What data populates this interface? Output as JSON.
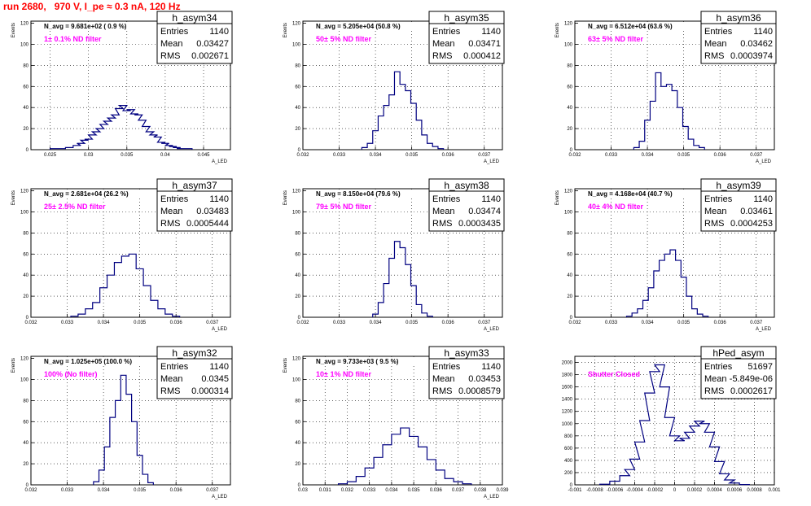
{
  "run_title": "run 2680,   970 V, I_pe ≈ 0.3 nA, 120 Hz",
  "chart_data": [
    {
      "type": "histogram",
      "name": "h_asym34",
      "entries": "1140",
      "mean": "0.03427",
      "rms": "0.002671",
      "annotation": "N_avg = 9.681e+02 ( 0.9 %)",
      "filter_label": "1± 0.1% ND filter",
      "xlabel": "A_LED",
      "ylabel": "Events",
      "xlim": [
        0.0225,
        0.0485
      ],
      "ylim": [
        0,
        122
      ],
      "xticks": [
        "0.025",
        "0.03",
        "0.035",
        "0.04",
        "0.045"
      ],
      "xtick_values": [
        0.025,
        0.03,
        0.035,
        0.04,
        0.045
      ],
      "yticks": [
        "0",
        "20",
        "40",
        "60",
        "80",
        "100",
        "120"
      ],
      "ytick_values": [
        0,
        20,
        40,
        60,
        80,
        100,
        120
      ],
      "x": [
        0.0255,
        0.0265,
        0.0275,
        0.0285,
        0.029,
        0.0295,
        0.03,
        0.0305,
        0.031,
        0.0315,
        0.032,
        0.0325,
        0.033,
        0.0335,
        0.034,
        0.0345,
        0.035,
        0.0355,
        0.036,
        0.0365,
        0.037,
        0.0375,
        0.038,
        0.0385,
        0.039,
        0.0395,
        0.04,
        0.0405,
        0.041,
        0.0415,
        0.042,
        0.043
      ],
      "y": [
        1,
        1,
        2,
        4,
        6,
        9,
        10,
        14,
        17,
        20,
        24,
        27,
        30,
        33,
        39,
        42,
        37,
        38,
        34,
        33,
        28,
        22,
        17,
        14,
        12,
        7,
        6,
        4,
        3,
        2,
        1,
        1
      ]
    },
    {
      "type": "histogram",
      "name": "h_asym35",
      "entries": "1140",
      "mean": "0.03471",
      "rms": "0.000412",
      "annotation": "N_avg = 5.205e+04 (50.8 %)",
      "filter_label": "50± 5% ND filter",
      "xlabel": "A_LED",
      "ylabel": "Events",
      "xlim": [
        0.032,
        0.0375
      ],
      "ylim": [
        0,
        122
      ],
      "xticks": [
        "0.032",
        "0.033",
        "0.034",
        "0.035",
        "0.036",
        "0.037"
      ],
      "xtick_values": [
        0.032,
        0.033,
        0.034,
        0.035,
        0.036,
        0.037
      ],
      "yticks": [
        "0",
        "20",
        "40",
        "60",
        "80",
        "100",
        "120"
      ],
      "ytick_values": [
        0,
        20,
        40,
        60,
        80,
        100,
        120
      ],
      "x": [
        0.0337,
        0.03385,
        0.034,
        0.03415,
        0.0343,
        0.03445,
        0.0346,
        0.03475,
        0.0349,
        0.03505,
        0.0352,
        0.03535,
        0.0355,
        0.03565,
        0.0358
      ],
      "y": [
        2,
        6,
        18,
        32,
        42,
        52,
        74,
        62,
        56,
        44,
        28,
        14,
        6,
        3,
        1
      ]
    },
    {
      "type": "histogram",
      "name": "h_asym36",
      "entries": "1140",
      "mean": "0.03462",
      "rms": "0.0003974",
      "annotation": "N_avg = 6.512e+04 (63.6 %)",
      "filter_label": "63± 5% ND filter",
      "xlabel": "A_LED",
      "ylabel": "Events",
      "xlim": [
        0.032,
        0.0375
      ],
      "ylim": [
        0,
        122
      ],
      "xticks": [
        "0.032",
        "0.033",
        "0.034",
        "0.035",
        "0.036",
        "0.037"
      ],
      "xtick_values": [
        0.032,
        0.033,
        0.034,
        0.035,
        0.036,
        0.037
      ],
      "yticks": [
        "0",
        "20",
        "40",
        "60",
        "80",
        "100",
        "120"
      ],
      "ytick_values": [
        0,
        20,
        40,
        60,
        80,
        100,
        120
      ],
      "x": [
        0.0337,
        0.03385,
        0.034,
        0.03415,
        0.0343,
        0.03445,
        0.0346,
        0.03475,
        0.0349,
        0.03505,
        0.0352,
        0.03535,
        0.0355
      ],
      "y": [
        2,
        8,
        28,
        46,
        73,
        60,
        62,
        56,
        40,
        22,
        10,
        4,
        2
      ]
    },
    {
      "type": "histogram",
      "name": "h_asym37",
      "entries": "1140",
      "mean": "0.03483",
      "rms": "0.0005444",
      "annotation": "N_avg = 2.681e+04 (26.2 %)",
      "filter_label": "25± 2.5% ND filter",
      "xlabel": "A_LED",
      "ylabel": "Events",
      "xlim": [
        0.032,
        0.0375
      ],
      "ylim": [
        0,
        122
      ],
      "xticks": [
        "0.032",
        "0.033",
        "0.034",
        "0.035",
        "0.036",
        "0.037"
      ],
      "xtick_values": [
        0.032,
        0.033,
        0.034,
        0.035,
        0.036,
        0.037
      ],
      "yticks": [
        "0",
        "20",
        "40",
        "60",
        "80",
        "100",
        "120"
      ],
      "ytick_values": [
        0,
        20,
        40,
        60,
        80,
        100,
        120
      ],
      "x": [
        0.0332,
        0.0334,
        0.0336,
        0.0338,
        0.034,
        0.0342,
        0.0344,
        0.0346,
        0.0348,
        0.035,
        0.0352,
        0.0354,
        0.0356,
        0.0358,
        0.036
      ],
      "y": [
        1,
        3,
        8,
        14,
        28,
        40,
        52,
        58,
        60,
        46,
        30,
        16,
        8,
        3,
        1
      ]
    },
    {
      "type": "histogram",
      "name": "h_asym38",
      "entries": "1140",
      "mean": "0.03474",
      "rms": "0.0003435",
      "annotation": "N_avg = 8.150e+04 (79.6 %)",
      "filter_label": "79± 5% ND filter",
      "xlabel": "A_LED",
      "ylabel": "Events",
      "xlim": [
        0.032,
        0.0375
      ],
      "ylim": [
        0,
        122
      ],
      "xticks": [
        "0.032",
        "0.033",
        "0.034",
        "0.035",
        "0.036",
        "0.037"
      ],
      "xtick_values": [
        0.032,
        0.033,
        0.034,
        0.035,
        0.036,
        0.037
      ],
      "yticks": [
        "0",
        "20",
        "40",
        "60",
        "80",
        "100",
        "120"
      ],
      "ytick_values": [
        0,
        20,
        40,
        60,
        80,
        100,
        120
      ],
      "x": [
        0.034,
        0.03415,
        0.0343,
        0.03445,
        0.0346,
        0.03475,
        0.0349,
        0.03505,
        0.0352,
        0.03535,
        0.0355
      ],
      "y": [
        3,
        14,
        32,
        56,
        72,
        66,
        50,
        30,
        12,
        4,
        1
      ]
    },
    {
      "type": "histogram",
      "name": "h_asym39",
      "entries": "1140",
      "mean": "0.03461",
      "rms": "0.0004253",
      "annotation": "N_avg = 4.168e+04 (40.7 %)",
      "filter_label": "40± 4% ND filter",
      "xlabel": "A_LED",
      "ylabel": "Events",
      "xlim": [
        0.032,
        0.0375
      ],
      "ylim": [
        0,
        122
      ],
      "xticks": [
        "0.032",
        "0.033",
        "0.034",
        "0.035",
        "0.036",
        "0.037"
      ],
      "xtick_values": [
        0.032,
        0.033,
        0.034,
        0.035,
        0.036,
        0.037
      ],
      "yticks": [
        "0",
        "20",
        "40",
        "60",
        "80",
        "100",
        "120"
      ],
      "ytick_values": [
        0,
        20,
        40,
        60,
        80,
        100,
        120
      ],
      "x": [
        0.0335,
        0.03365,
        0.0338,
        0.03395,
        0.0341,
        0.03425,
        0.0344,
        0.03455,
        0.0347,
        0.03485,
        0.035,
        0.03515,
        0.0353,
        0.03545,
        0.0356
      ],
      "y": [
        1,
        4,
        8,
        16,
        28,
        44,
        54,
        60,
        64,
        54,
        38,
        20,
        8,
        3,
        1
      ]
    },
    {
      "type": "histogram",
      "name": "h_asym32",
      "entries": "1140",
      "mean": "0.0345",
      "rms": "0.000314",
      "annotation": "N_avg = 1.025e+05 (100.0 %)",
      "filter_label": "100% (No filter)",
      "xlabel": "A_LED",
      "ylabel": "Events",
      "xlim": [
        0.032,
        0.0375
      ],
      "ylim": [
        0,
        122
      ],
      "xticks": [
        "0.032",
        "0.033",
        "0.034",
        "0.035",
        "0.036",
        "0.037"
      ],
      "xtick_values": [
        0.032,
        0.033,
        0.034,
        0.035,
        0.036,
        0.037
      ],
      "yticks": [
        "0",
        "20",
        "40",
        "60",
        "80",
        "100",
        "120"
      ],
      "ytick_values": [
        0,
        20,
        40,
        60,
        80,
        100,
        120
      ],
      "x": [
        0.0338,
        0.03395,
        0.0341,
        0.03425,
        0.0344,
        0.03455,
        0.0347,
        0.03485,
        0.035,
        0.03515,
        0.0353
      ],
      "y": [
        3,
        14,
        36,
        64,
        80,
        104,
        86,
        60,
        28,
        10,
        2
      ]
    },
    {
      "type": "histogram",
      "name": "h_asym33",
      "entries": "1140",
      "mean": "0.03453",
      "rms": "0.0008579",
      "annotation": "N_avg = 9.733e+03 ( 9.5 %)",
      "filter_label": "10± 1% ND filter",
      "xlabel": "A_LED",
      "ylabel": "Events",
      "xlim": [
        0.03,
        0.039
      ],
      "ylim": [
        0,
        122
      ],
      "xticks": [
        "0.03",
        "0.031",
        "0.032",
        "0.033",
        "0.034",
        "0.035",
        "0.036",
        "0.037",
        "0.038",
        "0.039"
      ],
      "xtick_values": [
        0.03,
        0.031,
        0.032,
        0.033,
        0.034,
        0.035,
        0.036,
        0.037,
        0.038,
        0.039
      ],
      "yticks": [
        "0",
        "20",
        "40",
        "60",
        "80",
        "100",
        "120"
      ],
      "ytick_values": [
        0,
        20,
        40,
        60,
        80,
        100,
        120
      ],
      "x": [
        0.0318,
        0.0322,
        0.0326,
        0.033,
        0.0334,
        0.0338,
        0.0342,
        0.0346,
        0.035,
        0.0354,
        0.0358,
        0.0362,
        0.0366,
        0.037,
        0.0374
      ],
      "y": [
        1,
        3,
        8,
        16,
        26,
        38,
        48,
        54,
        46,
        36,
        24,
        14,
        6,
        3,
        1
      ]
    },
    {
      "type": "histogram",
      "name": "hPed_asym",
      "entries": "51697",
      "mean": "-5.849e-06",
      "rms": "0.0002617",
      "annotation": "",
      "filter_label": "Shutter Closed",
      "xlabel": "",
      "ylabel": "",
      "xlim": [
        -0.001,
        0.001
      ],
      "ylim": [
        0,
        2100
      ],
      "xticks": [
        "-0.001",
        "-0.0008",
        "-0.0006",
        "-0.0004",
        "-0.0002",
        "0",
        "0.0002",
        "0.0004",
        "0.0006",
        "0.0008",
        "0.001"
      ],
      "xtick_values": [
        -0.001,
        -0.0008,
        -0.0006,
        -0.0004,
        -0.0002,
        0,
        0.0002,
        0.0004,
        0.0006,
        0.0008,
        0.001
      ],
      "yticks": [
        "0",
        "200",
        "400",
        "600",
        "800",
        "1000",
        "1200",
        "1400",
        "1600",
        "1800",
        "2000"
      ],
      "ytick_values": [
        0,
        200,
        400,
        600,
        800,
        1000,
        1200,
        1400,
        1600,
        1800,
        2000
      ],
      "x": [
        -0.0007,
        -0.0006,
        -0.0005,
        -0.00045,
        -0.0004,
        -0.00035,
        -0.0003,
        -0.00025,
        -0.0002,
        -0.00015,
        -0.0001,
        -5e-05,
        0,
        5e-05,
        0.0001,
        0.00015,
        0.0002,
        0.00025,
        0.0003,
        0.00035,
        0.0004,
        0.00045,
        0.0005,
        0.00055,
        0.0006,
        0.0007
      ],
      "y": [
        10,
        60,
        150,
        250,
        420,
        700,
        1050,
        1500,
        1850,
        1960,
        1600,
        1100,
        800,
        720,
        760,
        860,
        960,
        1040,
        1000,
        860,
        620,
        380,
        180,
        80,
        30,
        5
      ]
    }
  ]
}
